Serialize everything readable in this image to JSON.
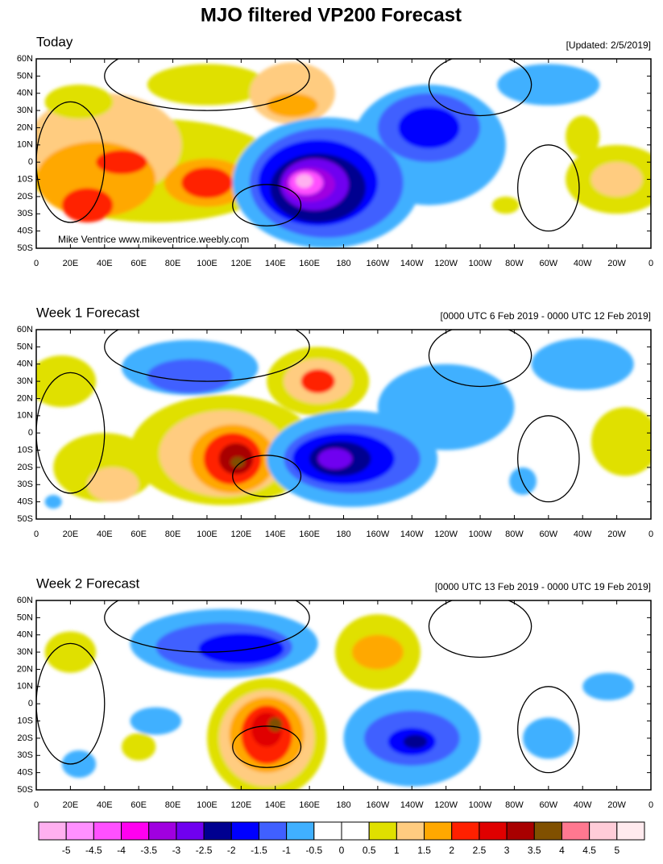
{
  "title": "MJO filtered VP200 Forecast",
  "watermark": "Mike Ventrice www.mikeventrice.weebly.com",
  "panels": [
    {
      "title": "Today",
      "date": "[Updated: 2/5/2019]"
    },
    {
      "title": "Week 1 Forecast",
      "date": "[0000 UTC 6 Feb 2019 - 0000 UTC 12 Feb 2019]"
    },
    {
      "title": "Week 2 Forecast",
      "date": "[0000 UTC 13 Feb 2019 - 0000 UTC 19 Feb 2019]"
    }
  ],
  "lat_labels": [
    "60N",
    "50N",
    "40N",
    "30N",
    "20N",
    "10N",
    "0",
    "10S",
    "20S",
    "30S",
    "40S",
    "50S"
  ],
  "lon_labels": [
    "0",
    "20E",
    "40E",
    "60E",
    "80E",
    "100E",
    "120E",
    "140E",
    "160E",
    "180",
    "160W",
    "140W",
    "120W",
    "100W",
    "80W",
    "60W",
    "40W",
    "20W",
    "0"
  ],
  "colorbar": {
    "colors": [
      "#ffb0f0",
      "#ff90ff",
      "#ff50ff",
      "#ff00f0",
      "#a000e0",
      "#7000f0",
      "#000090",
      "#0000ff",
      "#4060ff",
      "#40b0ff",
      "#ffffff",
      "#ffffff",
      "#e0e000",
      "#ffcc80",
      "#ffa800",
      "#ff2000",
      "#e00000",
      "#a80000",
      "#805000",
      "#ff7890",
      "#ffccd8",
      "#ffeaee"
    ],
    "labels": [
      -5,
      -4.5,
      -4,
      -3.5,
      -3,
      -2.5,
      -2,
      -1.5,
      -1,
      -0.5,
      0,
      0.5,
      1,
      1.5,
      2,
      2.5,
      3,
      3.5,
      4,
      4.5,
      5
    ]
  }
}
